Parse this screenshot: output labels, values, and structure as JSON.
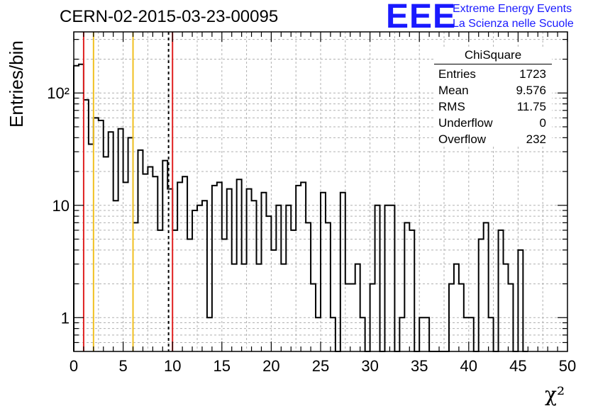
{
  "header": {
    "run_title": "CERN-02-2015-03-23-00095",
    "logo_text": "EEE",
    "logo_line1": "Extreme Energy Events",
    "logo_line2": "La Scienza nelle Scuole",
    "logo_color": "#1a1aff"
  },
  "stats_box": {
    "title": "ChiSquare",
    "rows": [
      {
        "name": "Entries",
        "value": "1723"
      },
      {
        "name": "Mean",
        "value": "9.576"
      },
      {
        "name": "RMS",
        "value": "11.75"
      },
      {
        "name": "Underflow",
        "value": "0"
      },
      {
        "name": "Overflow",
        "value": "232"
      }
    ]
  },
  "chart_data": {
    "type": "bar",
    "style": "step-histogram",
    "title": "CERN-02-2015-03-23-00095",
    "xlabel": "χ²",
    "ylabel": "Entries/bin",
    "xlim": [
      0,
      50
    ],
    "ylim": [
      0.5,
      350
    ],
    "log_y": true,
    "grid": true,
    "bin_width": 0.5,
    "x_tick_labels": [
      "0",
      "5",
      "10",
      "15",
      "20",
      "25",
      "30",
      "35",
      "40",
      "45",
      "50"
    ],
    "y_tick_labels": [
      "1",
      "10",
      "10²"
    ],
    "values": [
      175,
      180,
      87,
      35,
      60,
      57,
      27,
      45,
      11,
      48,
      16,
      40,
      7,
      31,
      19,
      22,
      18,
      6,
      25,
      14,
      6,
      16,
      18,
      5,
      9,
      10,
      11,
      1,
      15,
      16,
      5,
      14,
      3,
      17,
      3,
      14,
      11,
      3,
      13,
      8,
      4,
      10,
      3,
      10,
      6,
      15,
      16,
      7,
      2,
      1,
      13,
      7,
      1,
      0,
      13,
      2,
      2,
      3,
      1,
      0,
      2,
      10,
      0,
      10,
      10,
      0,
      1,
      7,
      6,
      0,
      1,
      1,
      0,
      0,
      0,
      0,
      2,
      3,
      2,
      1,
      1,
      0,
      5,
      7,
      1,
      0,
      6,
      3,
      2,
      0,
      4,
      0
    ],
    "vertical_lines": [
      {
        "x": 1,
        "color": "#e02020",
        "style": "solid"
      },
      {
        "x": 2,
        "color": "#f0c020",
        "style": "solid"
      },
      {
        "x": 6,
        "color": "#f0c020",
        "style": "solid"
      },
      {
        "x": 9.6,
        "color": "#000000",
        "style": "dashed"
      },
      {
        "x": 10,
        "color": "#e02020",
        "style": "solid"
      }
    ]
  }
}
